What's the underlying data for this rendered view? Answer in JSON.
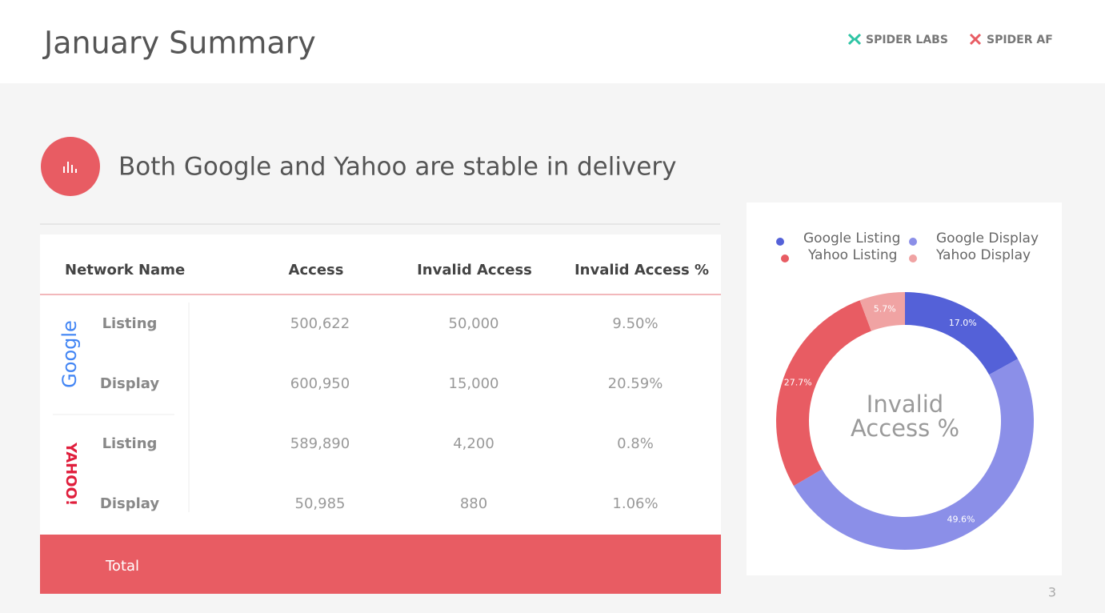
{
  "header": {
    "title": "January Summary",
    "logos": [
      "SPIDER LABS",
      "SPIDER AF"
    ]
  },
  "section": {
    "title": "Both Google and Yahoo are stable in delivery"
  },
  "table": {
    "columns": [
      "Network Name",
      "Access",
      "Invalid Access",
      "Invalid Access %"
    ],
    "groups": [
      {
        "name": "Google",
        "rows": [
          [
            "Listing",
            "500,622",
            "50,000",
            "9.50%"
          ],
          [
            "Display",
            "600,950",
            "15,000",
            "20.59%"
          ]
        ]
      },
      {
        "name": "YAHOO!",
        "rows": [
          [
            "Listing",
            "589,890",
            "4,200",
            "0.8%"
          ],
          [
            "Display",
            "50,985",
            "880",
            "1.06%"
          ]
        ]
      }
    ],
    "total": "Total"
  },
  "chart_data": {
    "type": "donut",
    "title": "Invalid Access %",
    "categories": [
      "Google Listing",
      "Google Display",
      "Yahoo Listing",
      "Yahoo Display"
    ],
    "values": [
      17.0,
      49.6,
      27.7,
      5.7
    ],
    "value_labels": [
      "17.0%",
      "49.6%",
      "27.7%",
      "5.7%"
    ],
    "colors": [
      "#5461d8",
      "#8b8fe8",
      "#e85c63",
      "#f0a3a3"
    ]
  },
  "page_number": "3"
}
